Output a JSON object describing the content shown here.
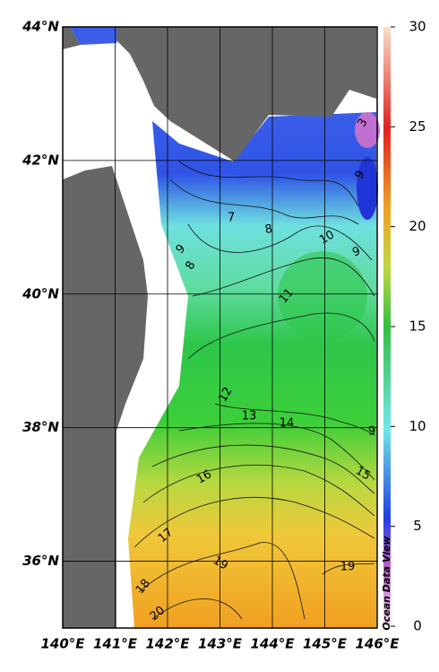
{
  "map": {
    "xlim": [
      140,
      146
    ],
    "ylim": [
      35,
      44
    ],
    "lon_ticks": [
      {
        "value": 140,
        "label": "140°E"
      },
      {
        "value": 141,
        "label": "141°E"
      },
      {
        "value": 142,
        "label": "142°E"
      },
      {
        "value": 143,
        "label": "143°E"
      },
      {
        "value": 144,
        "label": "144°E"
      },
      {
        "value": 145,
        "label": "145°E"
      },
      {
        "value": 146,
        "label": "146°E"
      }
    ],
    "lat_ticks": [
      {
        "value": 44,
        "label": "44°N"
      },
      {
        "value": 42,
        "label": "42°N"
      },
      {
        "value": 40,
        "label": "40°N"
      },
      {
        "value": 38,
        "label": "38°N"
      },
      {
        "value": 36,
        "label": "36°N"
      }
    ],
    "colorbar": {
      "lim": [
        0,
        30
      ],
      "ticks": [
        0,
        5,
        10,
        15,
        20,
        25,
        30
      ]
    },
    "contour_labels": [
      3,
      9,
      7,
      8,
      9,
      8,
      10,
      9,
      11,
      12,
      13,
      14,
      9,
      15,
      16,
      17,
      19,
      19,
      18,
      20
    ],
    "credit": "Ocean Data View"
  }
}
